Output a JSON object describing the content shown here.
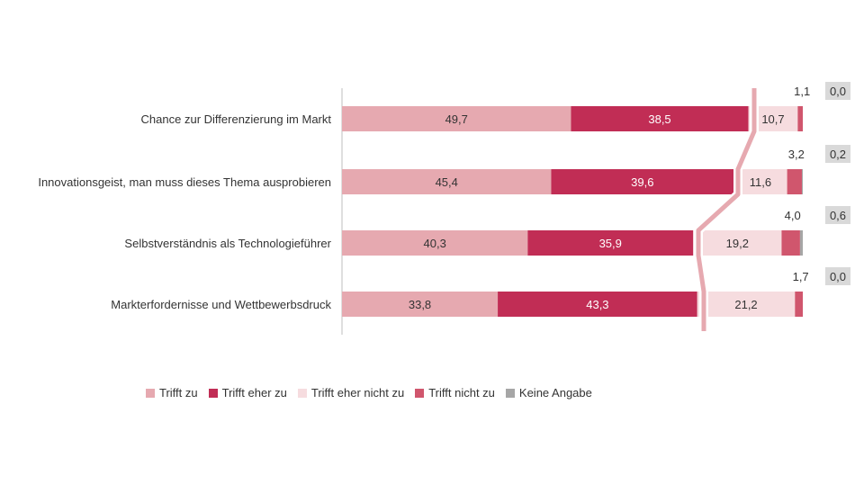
{
  "chart_data": {
    "type": "bar",
    "orientation": "horizontal",
    "stacked": true,
    "title": "",
    "xlabel": "",
    "ylabel": "",
    "categories": [
      "Chance zur Differenzierung im Markt",
      "Innovationsgeist, man muss dieses Thema ausprobieren",
      "Selbstverständnis als Technologieführer",
      "Markterfordernisse und Wettbewerbsdruck"
    ],
    "series": [
      {
        "name": "Trifft zu",
        "color": "#e6a9b0",
        "values": [
          49.7,
          45.4,
          40.3,
          33.8
        ],
        "labels": [
          "49,7",
          "45,4",
          "40,3",
          "33,8"
        ]
      },
      {
        "name": "Trifft eher zu",
        "color": "#c12d55",
        "values": [
          38.5,
          39.6,
          35.9,
          43.3
        ],
        "labels": [
          "38,5",
          "39,6",
          "35,9",
          "43,3"
        ]
      },
      {
        "name": "Trifft eher nicht zu",
        "color": "#f6dcdf",
        "values": [
          10.7,
          11.6,
          19.2,
          21.2
        ],
        "labels": [
          "10,7",
          "11,6",
          "19,2",
          "21,2"
        ]
      },
      {
        "name": "Trifft nicht zu",
        "color": "#d0566d",
        "values": [
          1.1,
          3.2,
          4.0,
          1.7
        ],
        "labels": [
          "1,1",
          "3,2",
          "4,0",
          "1,7"
        ]
      },
      {
        "name": "Keine Angabe",
        "color": "#a6a6a6",
        "values": [
          0.0,
          0.2,
          0.6,
          0.0
        ],
        "labels": [
          "0,0",
          "0,2",
          "0,6",
          "0,0"
        ]
      }
    ],
    "legend_position": "bottom",
    "axis_break": true,
    "grid": false
  }
}
